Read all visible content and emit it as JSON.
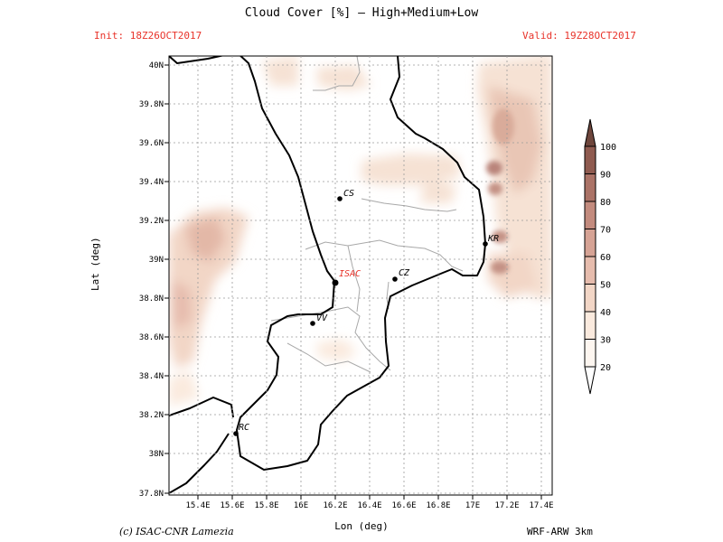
{
  "header": {
    "title": "Cloud Cover [%] — High+Medium+Low",
    "init": "Init: 18Z26OCT2017",
    "valid": "Valid: 19Z28OCT2017"
  },
  "axes": {
    "xlabel": "Lon (deg)",
    "ylabel": "Lat (deg)",
    "xticks": [
      "15.4E",
      "15.6E",
      "15.8E",
      "16E",
      "16.2E",
      "16.4E",
      "16.6E",
      "16.8E",
      "17E",
      "17.2E",
      "17.4E"
    ],
    "yticks": [
      "40N",
      "39.8N",
      "39.6N",
      "39.4N",
      "39.2N",
      "39N",
      "38.8N",
      "38.6N",
      "38.4N",
      "38.2N",
      "38N",
      "37.8N"
    ]
  },
  "cities": [
    {
      "name": "CS"
    },
    {
      "name": "KR"
    },
    {
      "name": "ISAC"
    },
    {
      "name": "CZ"
    },
    {
      "name": "VV"
    },
    {
      "name": "RC"
    }
  ],
  "colorbar": {
    "levels": [
      "20",
      "30",
      "40",
      "50",
      "60",
      "70",
      "80",
      "90",
      "100"
    ],
    "colors": [
      "#fdf6f0",
      "#faeade",
      "#f2d6c6",
      "#e6bcad",
      "#d6a395",
      "#c38b7e",
      "#ab7367",
      "#8f5b50",
      "#6e463c"
    ]
  },
  "footer": {
    "copyright": "(c) ISAC-CNR Lamezia",
    "model": "WRF-ARW 3km"
  },
  "colors": {
    "header_red": "#e8332a",
    "city_red": "#e8332a"
  }
}
